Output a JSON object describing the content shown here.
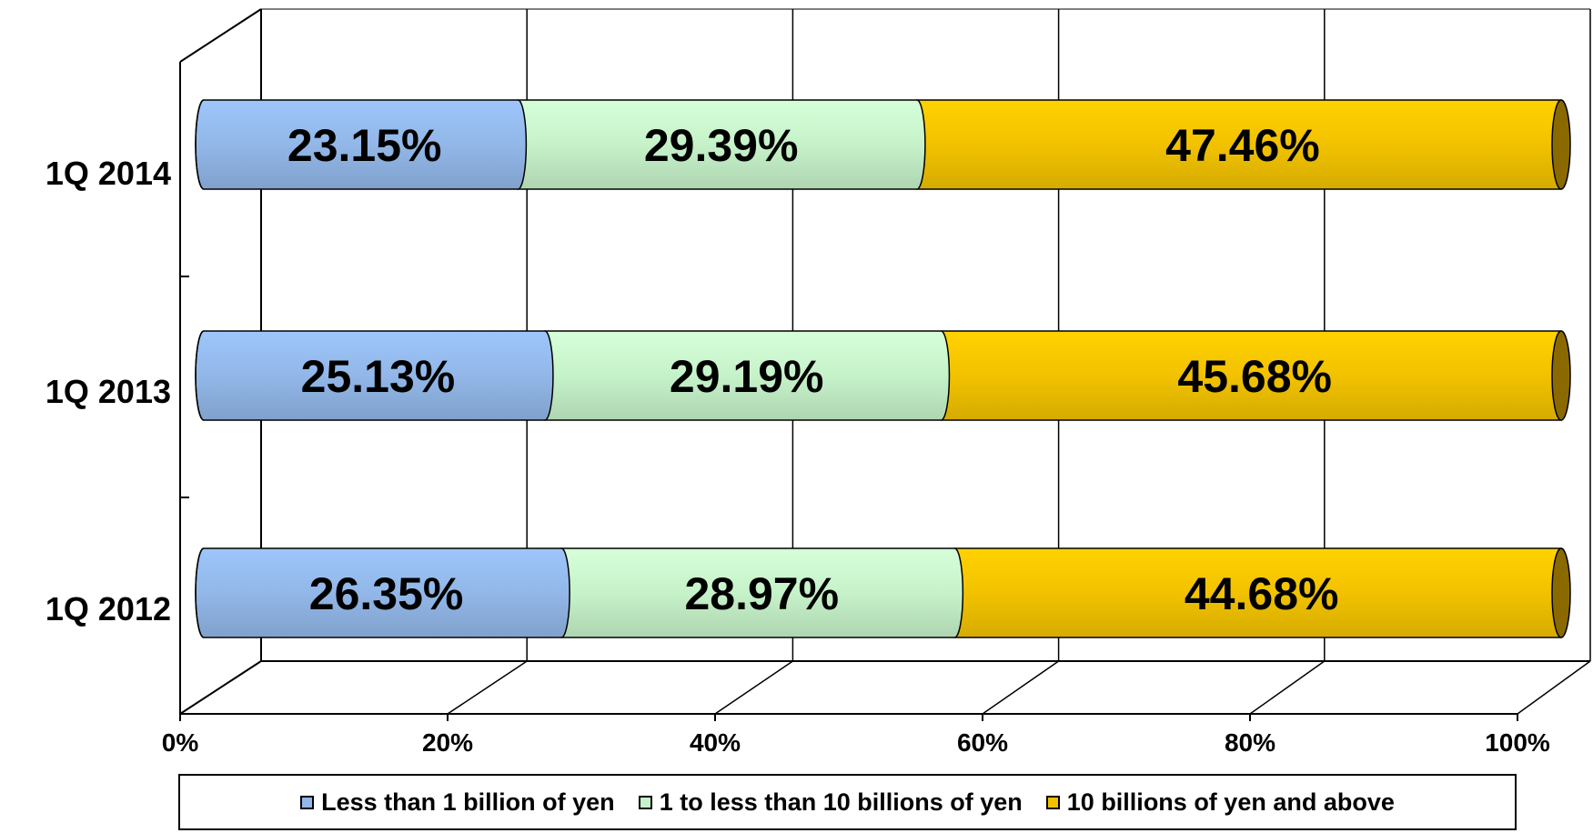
{
  "chart_data": {
    "type": "bar",
    "orientation": "horizontal",
    "stacked": "100%",
    "style": "3d-cylinder",
    "categories": [
      "1Q 2012",
      "1Q 2013",
      "1Q 2014"
    ],
    "series": [
      {
        "name": "Less than 1 billion of yen",
        "values": [
          26.35,
          25.13,
          23.15
        ],
        "labels": [
          "26.35%",
          "25.13%",
          "23.15%"
        ],
        "color": "#92b7e8"
      },
      {
        "name": "1 to less than 10 billions of yen",
        "values": [
          28.97,
          29.19,
          29.39
        ],
        "labels": [
          "28.97%",
          "29.19%",
          "29.39%"
        ],
        "color": "#c6f2c9"
      },
      {
        "name": "10 billions of yen and above",
        "values": [
          44.68,
          45.68,
          47.46
        ],
        "labels": [
          "44.68%",
          "45.68%",
          "47.46%"
        ],
        "color": "#f2c200"
      }
    ],
    "x_ticks": [
      "0%",
      "20%",
      "40%",
      "60%",
      "80%",
      "100%"
    ],
    "xlim": [
      0,
      100
    ],
    "grid": true,
    "legend_position": "bottom"
  }
}
